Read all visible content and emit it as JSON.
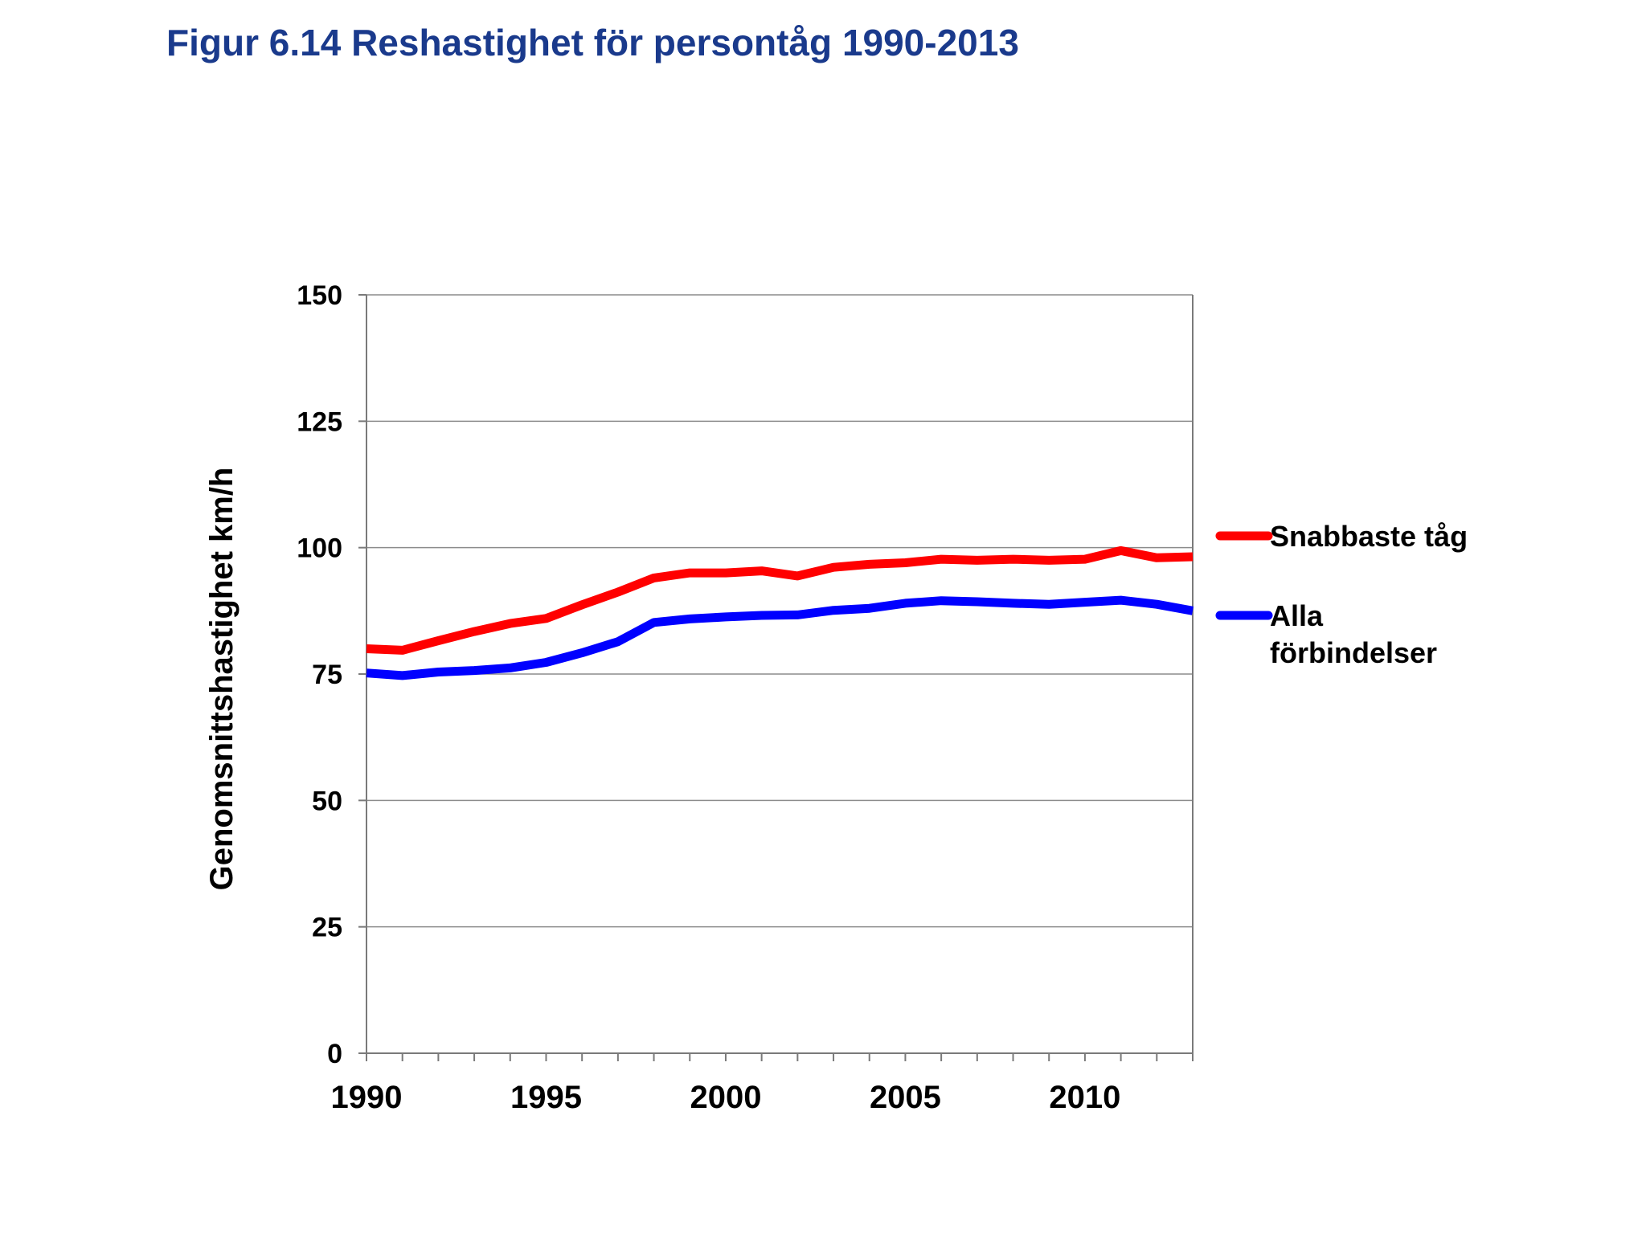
{
  "title": "Figur 6.14 Reshastighet för persontåg 1990-2013",
  "chart_data": {
    "type": "line",
    "ylabel": "Genomsnittshastighet km/h",
    "xlabel": "",
    "ylim": [
      0,
      150
    ],
    "xlim": [
      1990,
      2013
    ],
    "yticks": [
      0,
      25,
      50,
      75,
      100,
      125,
      150
    ],
    "xticks": [
      1990,
      1995,
      2000,
      2005,
      2010
    ],
    "grid": true,
    "legend_position": "right",
    "x": [
      1990,
      1991,
      1992,
      1993,
      1994,
      1995,
      1996,
      1997,
      1998,
      1999,
      2000,
      2001,
      2002,
      2003,
      2004,
      2005,
      2006,
      2007,
      2008,
      2009,
      2010,
      2011,
      2012,
      2013
    ],
    "series": [
      {
        "name": "Snabbaste tåg",
        "color": "#ff0000",
        "values": [
          80.0,
          79.7,
          81.6,
          83.4,
          85.0,
          86.0,
          88.7,
          91.2,
          94.0,
          95.0,
          95.0,
          95.4,
          94.4,
          96.1,
          96.7,
          97.0,
          97.7,
          97.5,
          97.7,
          97.5,
          97.7,
          99.4,
          98.0,
          98.2
        ]
      },
      {
        "name": "Alla förbindelser",
        "name_lines": [
          "Alla",
          "förbindelser"
        ],
        "color": "#0000ff",
        "values": [
          75.2,
          74.7,
          75.4,
          75.7,
          76.2,
          77.3,
          79.2,
          81.4,
          85.2,
          85.9,
          86.3,
          86.6,
          86.7,
          87.6,
          88.0,
          89.0,
          89.5,
          89.3,
          89.0,
          88.8,
          89.2,
          89.6,
          88.8,
          87.5
        ]
      }
    ]
  }
}
